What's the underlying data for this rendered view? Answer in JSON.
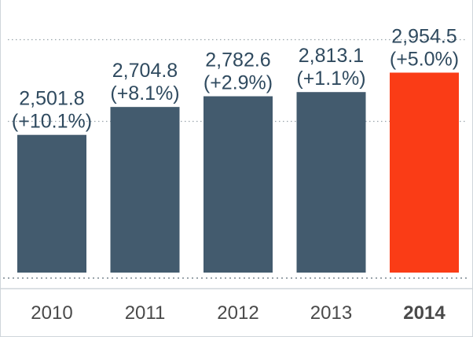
{
  "chart_data": {
    "type": "bar",
    "title": "",
    "xlabel": "",
    "ylabel": "",
    "categories": [
      "2010",
      "2011",
      "2012",
      "2013",
      "2014"
    ],
    "values": [
      2501.8,
      2704.8,
      2782.6,
      2813.1,
      2954.5
    ],
    "value_labels": [
      "2,501.8",
      "2,704.8",
      "2,782.6",
      "2,813.1",
      "2,954.5"
    ],
    "change_labels": [
      "(+10.1%)",
      "(+8.1%)",
      "(+2.9%)",
      "(+1.1%)",
      "(+5.0%)"
    ],
    "highlight_category": "2014",
    "ylim": [
      1500,
      3300
    ],
    "grid": true,
    "legend": "none",
    "colors": {
      "bar": "#435b6e",
      "highlight": "#fa3c16",
      "label": "#2f4a5f",
      "axis_label": "#4a4a4a",
      "grid": "#9aa4ab",
      "border": "#cfd5da"
    }
  }
}
